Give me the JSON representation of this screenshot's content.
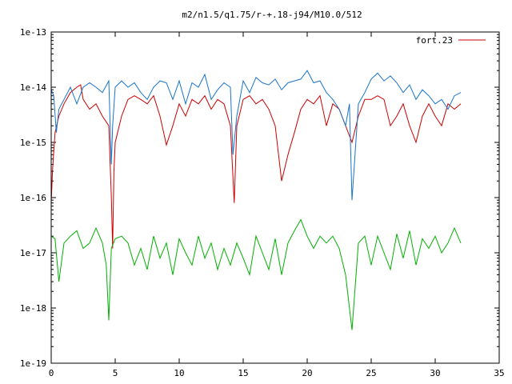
{
  "chart_data": {
    "type": "line",
    "title": "m2/n1.5/q1.75/r-+.18-j94/M10.0/512",
    "xlabel": "",
    "ylabel": "",
    "xlim": [
      0,
      35
    ],
    "ylim": [
      1e-19,
      1e-13
    ],
    "yscale": "log",
    "grid": false,
    "legend_position": "top-right",
    "x_ticks": [
      0,
      5,
      10,
      15,
      20,
      25,
      30,
      35
    ],
    "x_tick_labels": [
      "0",
      "5",
      "10",
      "15",
      "20",
      "25",
      "30",
      "35"
    ],
    "y_ticks": [
      1e-19,
      1e-18,
      1e-17,
      1e-16,
      1e-15,
      1e-14,
      1e-13
    ],
    "y_tick_labels": [
      "1e-19",
      "1e-18",
      "1e-17",
      "1e-16",
      "1e-15",
      "1e-14",
      "1e-13"
    ],
    "series": [
      {
        "name": "fort.23",
        "color": "#cc0000",
        "x": [
          0.0,
          0.1,
          0.3,
          0.6,
          1.0,
          1.5,
          2.0,
          2.3,
          2.5,
          3.0,
          3.5,
          4.0,
          4.5,
          4.7,
          4.8,
          4.9,
          5.0,
          5.5,
          6.0,
          6.5,
          7.0,
          7.5,
          8.0,
          8.5,
          9.0,
          9.5,
          10.0,
          10.5,
          11.0,
          11.5,
          12.0,
          12.5,
          13.0,
          13.5,
          14.0,
          14.3,
          14.5,
          15.0,
          15.5,
          16.0,
          16.5,
          17.0,
          17.5,
          18.0,
          18.5,
          19.0,
          19.5,
          20.0,
          20.5,
          21.0,
          21.5,
          22.0,
          22.5,
          23.0,
          23.5,
          24.0,
          24.5,
          25.0,
          25.5,
          26.0,
          26.5,
          27.0,
          27.5,
          28.0,
          28.5,
          29.0,
          29.5,
          30.0,
          30.5,
          31.0,
          31.5,
          32.0
        ],
        "y": [
          8e-17,
          3e-16,
          1.5e-15,
          3e-15,
          5e-15,
          8e-15,
          1e-14,
          1.1e-14,
          6e-15,
          4e-15,
          5e-15,
          3e-15,
          2e-15,
          1e-16,
          1.2e-17,
          3e-16,
          1e-15,
          3e-15,
          6e-15,
          7e-15,
          6e-15,
          5e-15,
          7e-15,
          3e-15,
          9e-16,
          2e-15,
          5e-15,
          3e-15,
          6e-15,
          5e-15,
          7e-15,
          4e-15,
          6e-15,
          5e-15,
          2e-15,
          8e-17,
          2e-15,
          6e-15,
          7e-15,
          5e-15,
          6e-15,
          4e-15,
          2e-15,
          2e-16,
          6e-16,
          1.5e-15,
          4e-15,
          6e-15,
          5e-15,
          7e-15,
          2e-15,
          5e-15,
          4e-15,
          2e-15,
          1e-15,
          3e-15,
          6e-15,
          6e-15,
          7e-15,
          6e-15,
          2e-15,
          3e-15,
          5e-15,
          2e-15,
          1e-15,
          3e-15,
          5e-15,
          3e-15,
          2e-15,
          5e-15,
          4e-15,
          5e-15
        ]
      },
      {
        "name": "",
        "color": "#1874cd",
        "x": [
          0.0,
          0.2,
          0.4,
          0.6,
          1.0,
          1.5,
          2.0,
          2.5,
          3.0,
          3.5,
          4.0,
          4.5,
          4.7,
          4.8,
          5.0,
          5.5,
          6.0,
          6.5,
          7.0,
          7.5,
          8.0,
          8.5,
          9.0,
          9.5,
          10.0,
          10.5,
          11.0,
          11.5,
          12.0,
          12.5,
          13.0,
          13.5,
          14.0,
          14.2,
          14.5,
          15.0,
          15.5,
          16.0,
          16.5,
          17.0,
          17.5,
          18.0,
          18.5,
          19.0,
          19.5,
          20.0,
          20.5,
          21.0,
          21.5,
          22.0,
          22.5,
          23.0,
          23.3,
          23.5,
          24.0,
          24.5,
          25.0,
          25.5,
          26.0,
          26.5,
          27.0,
          27.5,
          28.0,
          28.5,
          29.0,
          29.5,
          30.0,
          30.5,
          31.0,
          31.5,
          32.0
        ],
        "y": [
          9e-15,
          7e-15,
          1.5e-15,
          4e-15,
          6e-15,
          1e-14,
          5e-15,
          1e-14,
          1.2e-14,
          1e-14,
          8e-15,
          1.3e-14,
          4e-16,
          2e-15,
          1e-14,
          1.3e-14,
          1e-14,
          1.2e-14,
          8e-15,
          6e-15,
          1e-14,
          1.3e-14,
          1.2e-14,
          6e-15,
          1.3e-14,
          5e-15,
          1.2e-14,
          1e-14,
          1.7e-14,
          6e-15,
          9e-15,
          1.2e-14,
          1e-14,
          6e-16,
          3e-15,
          1.3e-14,
          8e-15,
          1.5e-14,
          1.2e-14,
          1.1e-14,
          1.4e-14,
          9e-15,
          1.2e-14,
          1.3e-14,
          1.4e-14,
          2e-14,
          1.2e-14,
          1.3e-14,
          8e-15,
          6e-15,
          4e-15,
          2e-15,
          5e-15,
          9e-17,
          5e-15,
          8e-15,
          1.4e-14,
          1.8e-14,
          1.3e-14,
          1.6e-14,
          1.2e-14,
          8e-15,
          1.1e-14,
          6e-15,
          9e-15,
          7e-15,
          5e-15,
          6e-15,
          4e-15,
          7e-15,
          8e-15
        ]
      },
      {
        "name": "",
        "color": "#00b000",
        "x": [
          0.0,
          0.3,
          0.6,
          1.0,
          1.5,
          2.0,
          2.5,
          3.0,
          3.5,
          4.0,
          4.3,
          4.5,
          4.7,
          5.0,
          5.5,
          6.0,
          6.5,
          7.0,
          7.5,
          8.0,
          8.5,
          9.0,
          9.5,
          10.0,
          10.5,
          11.0,
          11.5,
          12.0,
          12.5,
          13.0,
          13.5,
          14.0,
          14.5,
          15.0,
          15.5,
          16.0,
          16.5,
          17.0,
          17.5,
          18.0,
          18.5,
          19.0,
          19.5,
          20.0,
          20.5,
          21.0,
          21.5,
          22.0,
          22.5,
          23.0,
          23.5,
          24.0,
          24.5,
          25.0,
          25.5,
          26.0,
          26.5,
          27.0,
          27.5,
          28.0,
          28.5,
          29.0,
          29.5,
          30.0,
          30.5,
          31.0,
          31.5,
          32.0
        ],
        "y": [
          2e-17,
          1.8e-17,
          3e-18,
          1.5e-17,
          2e-17,
          2.5e-17,
          1.2e-17,
          1.5e-17,
          2.8e-17,
          1.5e-17,
          6e-18,
          6e-19,
          1.2e-17,
          1.8e-17,
          2e-17,
          1.5e-17,
          6e-18,
          1.2e-17,
          5e-18,
          2e-17,
          8e-18,
          1.5e-17,
          4e-18,
          1.8e-17,
          1e-17,
          6e-18,
          2e-17,
          8e-18,
          1.5e-17,
          5e-18,
          1.2e-17,
          6e-18,
          1.5e-17,
          8e-18,
          4e-18,
          2e-17,
          1e-17,
          5e-18,
          1.8e-17,
          4e-18,
          1.5e-17,
          2.5e-17,
          4e-17,
          2e-17,
          1.2e-17,
          2e-17,
          1.5e-17,
          2e-17,
          1.2e-17,
          4e-18,
          4e-19,
          1.5e-17,
          2e-17,
          6e-18,
          2e-17,
          1e-17,
          5e-18,
          2.2e-17,
          8e-18,
          2.5e-17,
          6e-18,
          1.8e-17,
          1.2e-17,
          2e-17,
          1e-17,
          1.5e-17,
          2.8e-17,
          1.5e-17
        ]
      }
    ]
  }
}
